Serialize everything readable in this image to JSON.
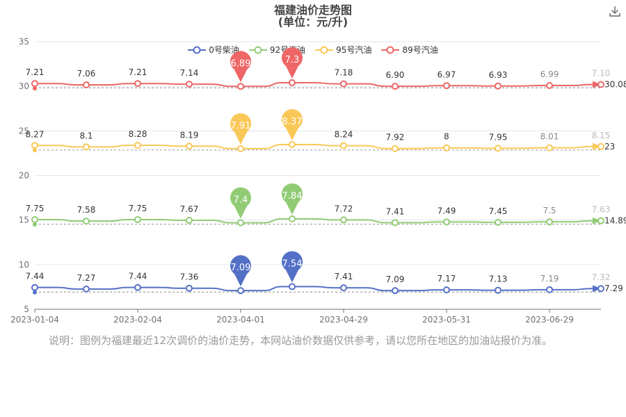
{
  "header": {
    "title": "福建油价走势图",
    "subtitle": "(单位：元/升)",
    "download_icon": "download-icon"
  },
  "footer": {
    "note": "说明：图例为福建最近12次调价的油价走势，本网站油价数据仅供参考，请以您所在地区的加油站报价为准。"
  },
  "chart_data": {
    "type": "line",
    "ylim": [
      5,
      35
    ],
    "yticks": [
      5,
      10,
      15,
      20,
      25,
      30,
      35
    ],
    "x_axis_labels": [
      "2023-01-04",
      "2023-02-04",
      "2023-04-01",
      "2023-04-29",
      "2023-05-31",
      "2023-06-29"
    ],
    "series": [
      {
        "name": "0号柴油",
        "color": "#5470c6",
        "labels": [
          "7.44",
          "7.27",
          "7.44",
          "7.36",
          "7.09",
          "7.54",
          "7.41",
          "7.09",
          "7.17",
          "7.13",
          "7.19",
          "7.32"
        ],
        "values": [
          7.44,
          7.27,
          7.44,
          7.36,
          7.09,
          7.54,
          7.41,
          7.09,
          7.17,
          7.13,
          7.19,
          7.32
        ],
        "bubble_max": "7.54",
        "bubble_min": "7.09",
        "average": "7.29"
      },
      {
        "name": "92号汽油",
        "color": "#91cc75",
        "labels": [
          "7.75",
          "7.58",
          "7.75",
          "7.67",
          "7.4",
          "7.84",
          "7.72",
          "7.41",
          "7.49",
          "7.45",
          "7.5",
          "7.63"
        ],
        "values": [
          7.75,
          7.58,
          7.75,
          7.67,
          7.4,
          7.84,
          7.72,
          7.41,
          7.49,
          7.45,
          7.5,
          7.63
        ],
        "bubble_max": "7.84",
        "bubble_min": "7.4",
        "average": "14.89"
      },
      {
        "name": "95号汽油",
        "color": "#fac858",
        "labels": [
          "8.27",
          "8.1",
          "8.28",
          "8.19",
          "7.91",
          "8.37",
          "8.24",
          "7.92",
          "8",
          "7.95",
          "8.01",
          "8.15"
        ],
        "values": [
          8.27,
          8.1,
          8.28,
          8.19,
          7.91,
          8.37,
          8.24,
          7.92,
          8.0,
          7.95,
          8.01,
          8.15
        ],
        "bubble_max": "8.37",
        "bubble_min": "7.91",
        "average": "23"
      },
      {
        "name": "89号汽油",
        "color": "#ee6666",
        "labels": [
          "7.21",
          "7.06",
          "7.21",
          "7.14",
          "6.89",
          "7.3",
          "7.18",
          "6.90",
          "6.97",
          "6.93",
          "6.99",
          "7.10"
        ],
        "values": [
          7.21,
          7.06,
          7.21,
          7.14,
          6.89,
          7.3,
          7.18,
          6.9,
          6.97,
          6.93,
          6.99,
          7.1
        ],
        "bubble_max": "7.3",
        "bubble_min": "6.89",
        "average": "30.08"
      }
    ]
  }
}
